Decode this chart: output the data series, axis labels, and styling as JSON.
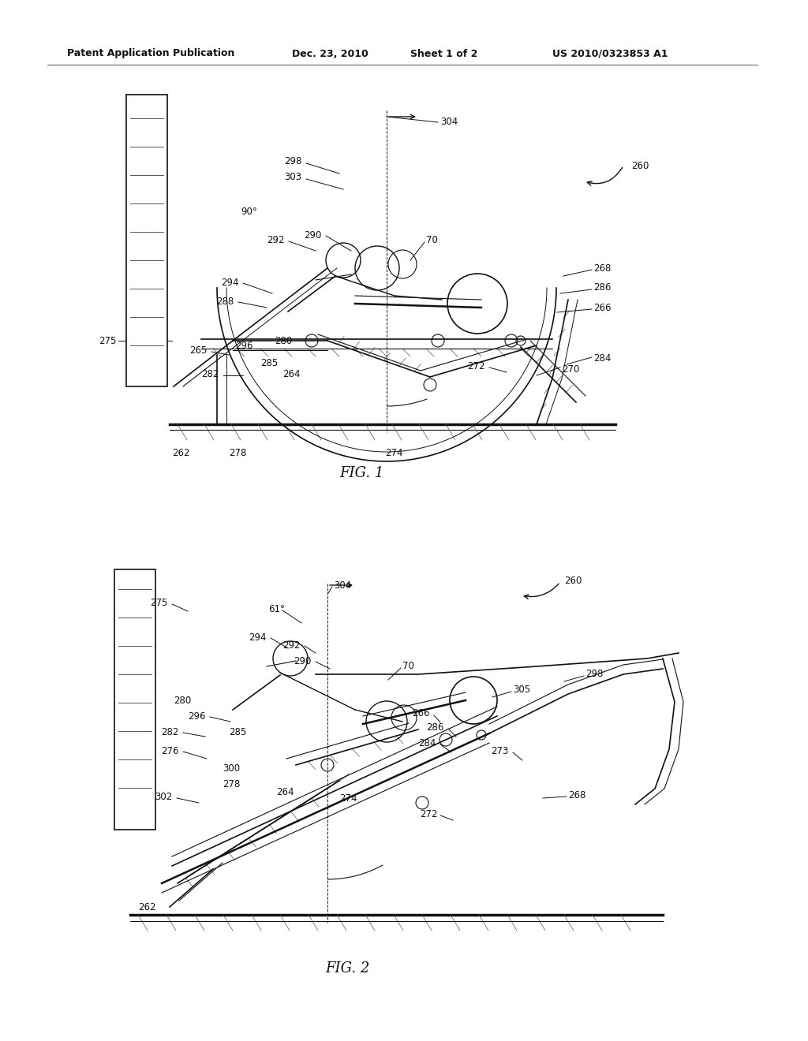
{
  "bg_color": "#ffffff",
  "header_text": "Patent Application Publication",
  "header_date": "Dec. 23, 2010",
  "header_sheet": "Sheet 1 of 2",
  "header_patent": "US 2010/0323853 A1",
  "fig1_label": "FIG. 1",
  "fig2_label": "FIG. 2",
  "text_color": "#111111",
  "gray_color": "#555555",
  "lw_thin": 0.6,
  "lw_med": 1.2,
  "lw_thick": 1.8,
  "fs_label": 8.5,
  "fs_fig": 13
}
